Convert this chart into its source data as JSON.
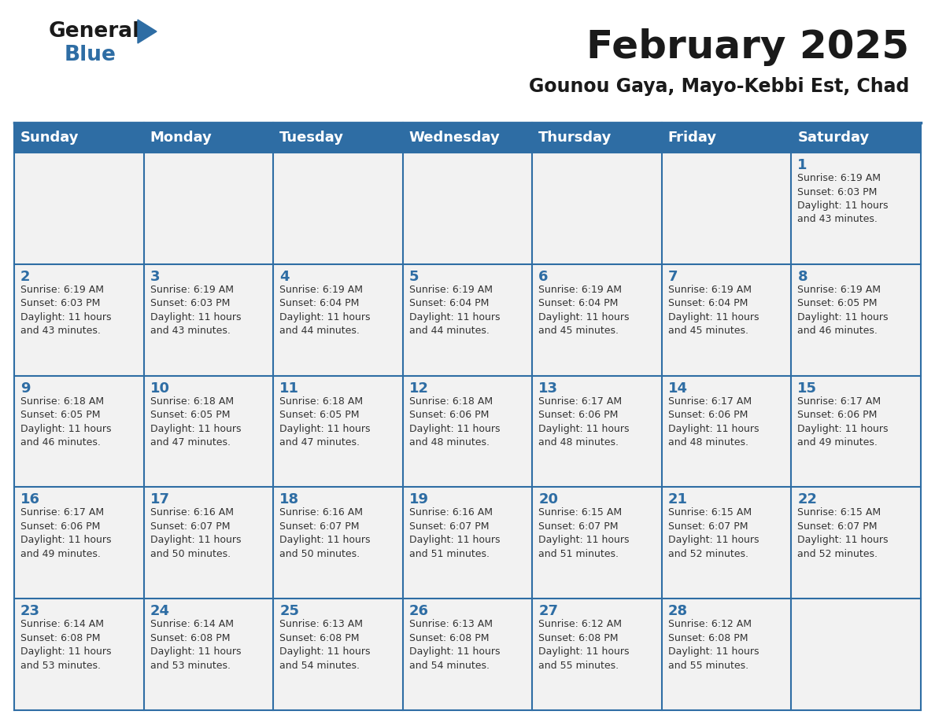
{
  "title": "February 2025",
  "subtitle": "Gounou Gaya, Mayo-Kebbi Est, Chad",
  "header_bg": "#2E6DA4",
  "header_text_color": "#FFFFFF",
  "day_number_color": "#2E6DA4",
  "text_color": "#333333",
  "border_color": "#2E6DA4",
  "cell_bg": "#F2F2F2",
  "days_of_week": [
    "Sunday",
    "Monday",
    "Tuesday",
    "Wednesday",
    "Thursday",
    "Friday",
    "Saturday"
  ],
  "weeks": [
    [
      {
        "day": "",
        "info": ""
      },
      {
        "day": "",
        "info": ""
      },
      {
        "day": "",
        "info": ""
      },
      {
        "day": "",
        "info": ""
      },
      {
        "day": "",
        "info": ""
      },
      {
        "day": "",
        "info": ""
      },
      {
        "day": "1",
        "info": "Sunrise: 6:19 AM\nSunset: 6:03 PM\nDaylight: 11 hours\nand 43 minutes."
      }
    ],
    [
      {
        "day": "2",
        "info": "Sunrise: 6:19 AM\nSunset: 6:03 PM\nDaylight: 11 hours\nand 43 minutes."
      },
      {
        "day": "3",
        "info": "Sunrise: 6:19 AM\nSunset: 6:03 PM\nDaylight: 11 hours\nand 43 minutes."
      },
      {
        "day": "4",
        "info": "Sunrise: 6:19 AM\nSunset: 6:04 PM\nDaylight: 11 hours\nand 44 minutes."
      },
      {
        "day": "5",
        "info": "Sunrise: 6:19 AM\nSunset: 6:04 PM\nDaylight: 11 hours\nand 44 minutes."
      },
      {
        "day": "6",
        "info": "Sunrise: 6:19 AM\nSunset: 6:04 PM\nDaylight: 11 hours\nand 45 minutes."
      },
      {
        "day": "7",
        "info": "Sunrise: 6:19 AM\nSunset: 6:04 PM\nDaylight: 11 hours\nand 45 minutes."
      },
      {
        "day": "8",
        "info": "Sunrise: 6:19 AM\nSunset: 6:05 PM\nDaylight: 11 hours\nand 46 minutes."
      }
    ],
    [
      {
        "day": "9",
        "info": "Sunrise: 6:18 AM\nSunset: 6:05 PM\nDaylight: 11 hours\nand 46 minutes."
      },
      {
        "day": "10",
        "info": "Sunrise: 6:18 AM\nSunset: 6:05 PM\nDaylight: 11 hours\nand 47 minutes."
      },
      {
        "day": "11",
        "info": "Sunrise: 6:18 AM\nSunset: 6:05 PM\nDaylight: 11 hours\nand 47 minutes."
      },
      {
        "day": "12",
        "info": "Sunrise: 6:18 AM\nSunset: 6:06 PM\nDaylight: 11 hours\nand 48 minutes."
      },
      {
        "day": "13",
        "info": "Sunrise: 6:17 AM\nSunset: 6:06 PM\nDaylight: 11 hours\nand 48 minutes."
      },
      {
        "day": "14",
        "info": "Sunrise: 6:17 AM\nSunset: 6:06 PM\nDaylight: 11 hours\nand 48 minutes."
      },
      {
        "day": "15",
        "info": "Sunrise: 6:17 AM\nSunset: 6:06 PM\nDaylight: 11 hours\nand 49 minutes."
      }
    ],
    [
      {
        "day": "16",
        "info": "Sunrise: 6:17 AM\nSunset: 6:06 PM\nDaylight: 11 hours\nand 49 minutes."
      },
      {
        "day": "17",
        "info": "Sunrise: 6:16 AM\nSunset: 6:07 PM\nDaylight: 11 hours\nand 50 minutes."
      },
      {
        "day": "18",
        "info": "Sunrise: 6:16 AM\nSunset: 6:07 PM\nDaylight: 11 hours\nand 50 minutes."
      },
      {
        "day": "19",
        "info": "Sunrise: 6:16 AM\nSunset: 6:07 PM\nDaylight: 11 hours\nand 51 minutes."
      },
      {
        "day": "20",
        "info": "Sunrise: 6:15 AM\nSunset: 6:07 PM\nDaylight: 11 hours\nand 51 minutes."
      },
      {
        "day": "21",
        "info": "Sunrise: 6:15 AM\nSunset: 6:07 PM\nDaylight: 11 hours\nand 52 minutes."
      },
      {
        "day": "22",
        "info": "Sunrise: 6:15 AM\nSunset: 6:07 PM\nDaylight: 11 hours\nand 52 minutes."
      }
    ],
    [
      {
        "day": "23",
        "info": "Sunrise: 6:14 AM\nSunset: 6:08 PM\nDaylight: 11 hours\nand 53 minutes."
      },
      {
        "day": "24",
        "info": "Sunrise: 6:14 AM\nSunset: 6:08 PM\nDaylight: 11 hours\nand 53 minutes."
      },
      {
        "day": "25",
        "info": "Sunrise: 6:13 AM\nSunset: 6:08 PM\nDaylight: 11 hours\nand 54 minutes."
      },
      {
        "day": "26",
        "info": "Sunrise: 6:13 AM\nSunset: 6:08 PM\nDaylight: 11 hours\nand 54 minutes."
      },
      {
        "day": "27",
        "info": "Sunrise: 6:12 AM\nSunset: 6:08 PM\nDaylight: 11 hours\nand 55 minutes."
      },
      {
        "day": "28",
        "info": "Sunrise: 6:12 AM\nSunset: 6:08 PM\nDaylight: 11 hours\nand 55 minutes."
      },
      {
        "day": "",
        "info": ""
      }
    ]
  ],
  "logo_general_color": "#1a1a1a",
  "logo_blue_color": "#2E6DA4",
  "logo_triangle_color": "#2E6DA4"
}
